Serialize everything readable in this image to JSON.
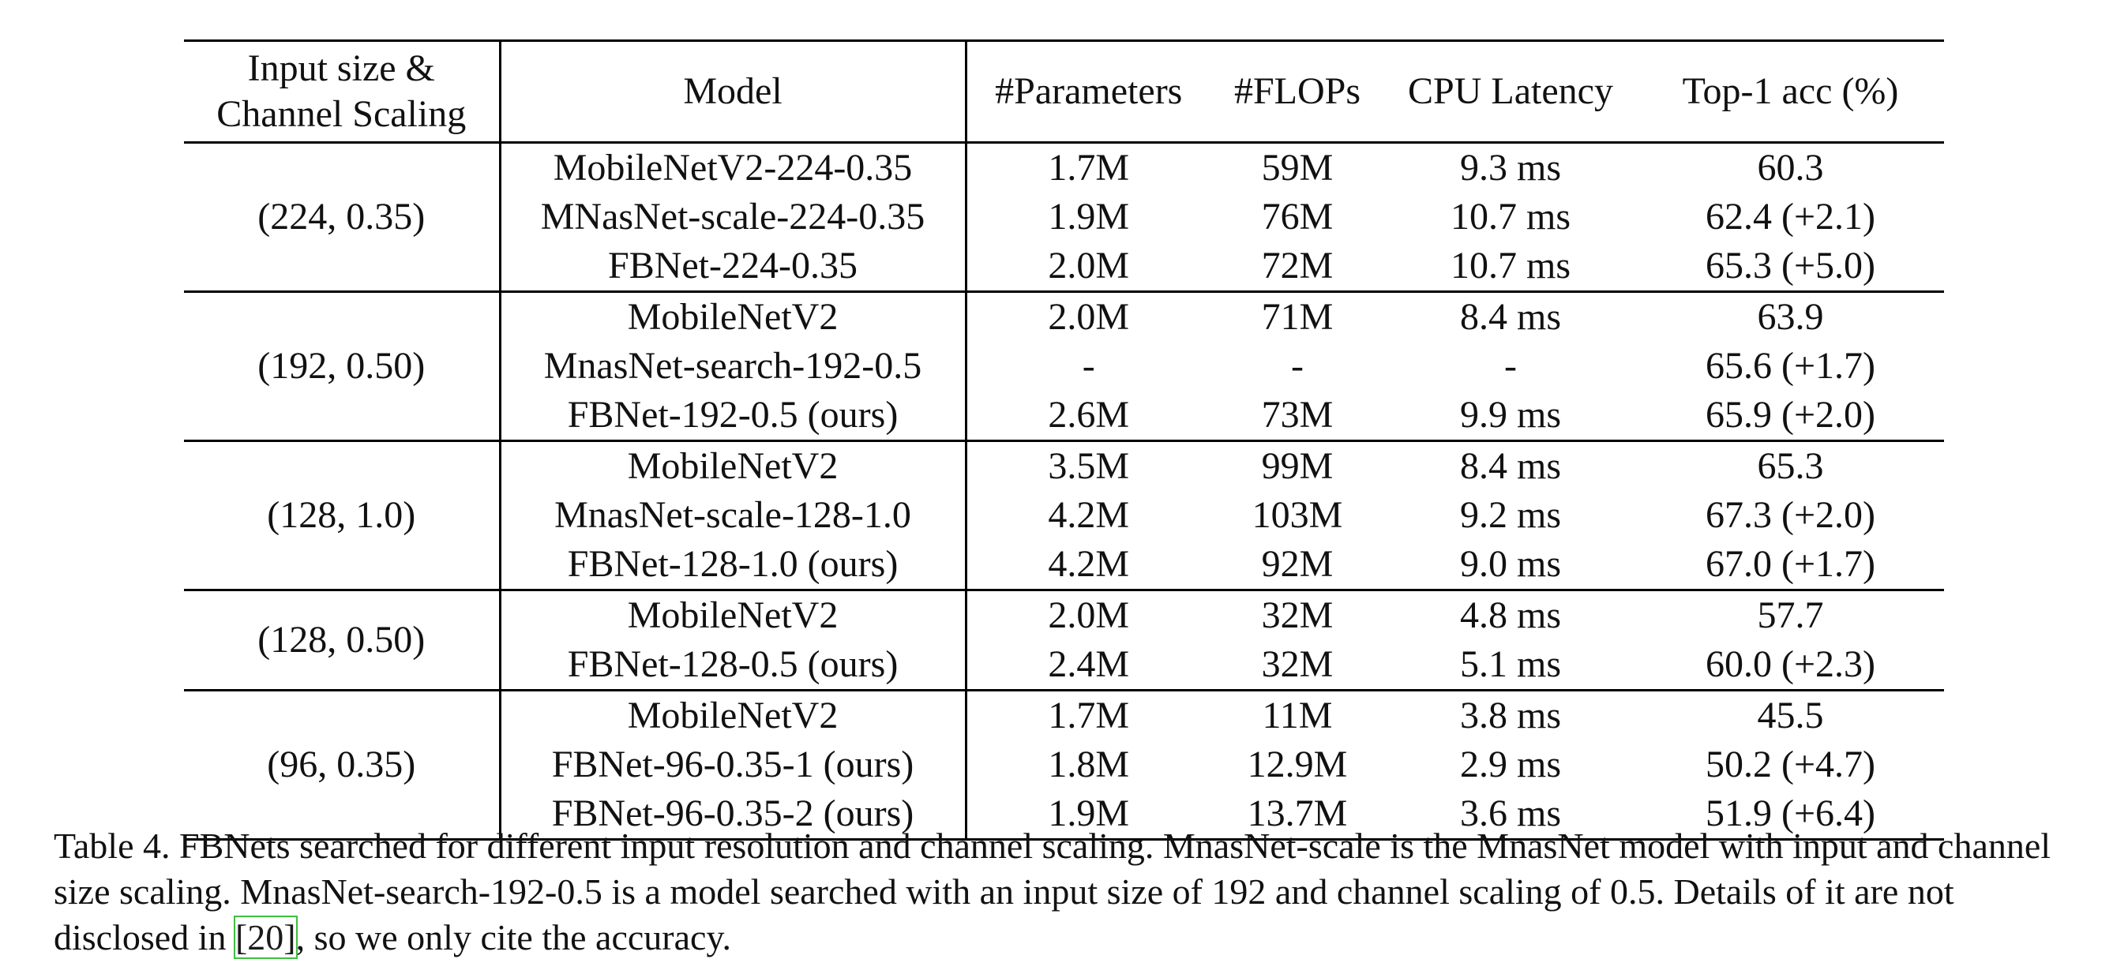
{
  "table": {
    "headers": {
      "col1": [
        "Input size &",
        "Channel Scaling"
      ],
      "model": "Model",
      "params": "#Parameters",
      "flops": "#FLOPs",
      "latency": "CPU Latency",
      "acc": "Top-1 acc (%)"
    },
    "groups": [
      {
        "label": "(224, 0.35)",
        "rows": [
          {
            "model": "MobileNetV2-224-0.35",
            "params": "1.7M",
            "flops": "59M",
            "latency": "9.3 ms",
            "acc": "60.3"
          },
          {
            "model": "MNasNet-scale-224-0.35",
            "params": "1.9M",
            "flops": "76M",
            "latency": "10.7 ms",
            "acc": "62.4 (+2.1)"
          },
          {
            "model": "FBNet-224-0.35",
            "params": "2.0M",
            "flops": "72M",
            "latency": "10.7 ms",
            "acc": "65.3 (+5.0)"
          }
        ]
      },
      {
        "label": "(192, 0.50)",
        "rows": [
          {
            "model": "MobileNetV2",
            "params": "2.0M",
            "flops": "71M",
            "latency": "8.4 ms",
            "acc": "63.9"
          },
          {
            "model": "MnasNet-search-192-0.5",
            "params": "-",
            "flops": "-",
            "latency": "-",
            "acc": "65.6 (+1.7)"
          },
          {
            "model": "FBNet-192-0.5 (ours)",
            "params": "2.6M",
            "flops": "73M",
            "latency": "9.9 ms",
            "acc": "65.9 (+2.0)"
          }
        ]
      },
      {
        "label": "(128, 1.0)",
        "rows": [
          {
            "model": "MobileNetV2",
            "params": "3.5M",
            "flops": "99M",
            "latency": "8.4 ms",
            "acc": "65.3"
          },
          {
            "model": "MnasNet-scale-128-1.0",
            "params": "4.2M",
            "flops": "103M",
            "latency": "9.2 ms",
            "acc": "67.3 (+2.0)"
          },
          {
            "model": "FBNet-128-1.0 (ours)",
            "params": "4.2M",
            "flops": "92M",
            "latency": "9.0 ms",
            "acc": "67.0 (+1.7)"
          }
        ]
      },
      {
        "label": "(128, 0.50)",
        "rows": [
          {
            "model": "MobileNetV2",
            "params": "2.0M",
            "flops": "32M",
            "latency": "4.8 ms",
            "acc": "57.7"
          },
          {
            "model": "FBNet-128-0.5 (ours)",
            "params": "2.4M",
            "flops": "32M",
            "latency": "5.1 ms",
            "acc": "60.0 (+2.3)"
          }
        ]
      },
      {
        "label": "(96, 0.35)",
        "rows": [
          {
            "model": "MobileNetV2",
            "params": "1.7M",
            "flops": "11M",
            "latency": "3.8 ms",
            "acc": "45.5"
          },
          {
            "model": "FBNet-96-0.35-1 (ours)",
            "params": "1.8M",
            "flops": "12.9M",
            "latency": "2.9 ms",
            "acc": "50.2 (+4.7)"
          },
          {
            "model": "FBNet-96-0.35-2 (ours)",
            "params": "1.9M",
            "flops": "13.7M",
            "latency": "3.6 ms",
            "acc": "51.9 (+6.4)"
          }
        ]
      }
    ]
  },
  "caption": {
    "line1": "Table 4. FBNets searched for different input resolution and channel scaling. MnasNet-scale is the MnasNet model with input and channel",
    "line2": "size scaling.  MnasNet-search-192-0.5 is a model searched with an input size of 192 and channel scaling of 0.5.  Details of it are not",
    "line3_before": "disclosed in ",
    "citation": "[20]",
    "line3_after": ", so we only cite the accuracy."
  }
}
